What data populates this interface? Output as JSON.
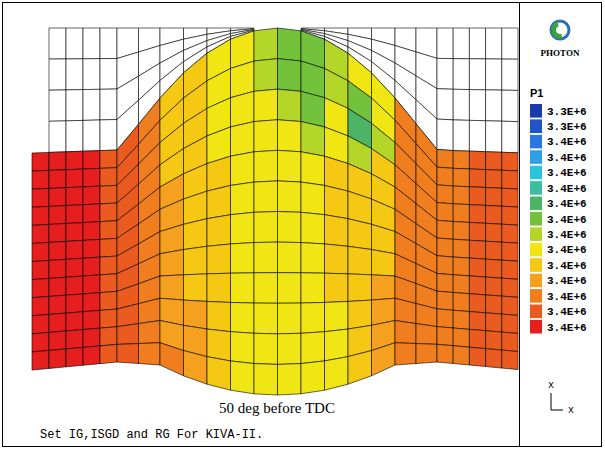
{
  "chart_data": {
    "type": "contour",
    "title": "50 deg before TDC",
    "subtitle": "Set IG,ISGD and RG For KIVA-II.",
    "logo": "PHOTON",
    "axis_labels": [
      "x",
      "x"
    ],
    "colorbar": {
      "title": "P1",
      "ticks": [
        {
          "value": 3337500,
          "label": "3.3E+6"
        },
        {
          "value": 3345000,
          "label": "3.3E+6"
        },
        {
          "value": 3352500,
          "label": "3.4E+6"
        },
        {
          "value": 3360000,
          "label": "3.4E+6"
        },
        {
          "value": 3367500,
          "label": "3.4E+6"
        },
        {
          "value": 3375000,
          "label": "3.4E+6"
        },
        {
          "value": 3382500,
          "label": "3.4E+6"
        },
        {
          "value": 3390000,
          "label": "3.4E+6"
        },
        {
          "value": 3397500,
          "label": "3.4E+6"
        },
        {
          "value": 3405000,
          "label": "3.4E+6"
        },
        {
          "value": 3412500,
          "label": "3.4E+6"
        },
        {
          "value": 3420000,
          "label": "3.4E+6"
        },
        {
          "value": 3427500,
          "label": "3.4E+6"
        },
        {
          "value": 3435000,
          "label": "3.4E+6"
        },
        {
          "value": 3442500,
          "label": "3.4E+6"
        }
      ],
      "colors": [
        "#1a3caa",
        "#1f55c8",
        "#2a78dc",
        "#2f9fe6",
        "#2cc3dc",
        "#3cbfa0",
        "#4cb464",
        "#72c23c",
        "#b4d628",
        "#f0e614",
        "#f5c814",
        "#f5a01e",
        "#f07d1e",
        "#eb5a1e",
        "#e61e1e"
      ]
    },
    "cells": [
      [
        3442500,
        3442500,
        3442500,
        3442500,
        3435000,
        3435000,
        3427500,
        3412500,
        3412500,
        3405000,
        3405000,
        3397500,
        3390000,
        3390000,
        3397500,
        3405000,
        3405000,
        3427500,
        3427500,
        3427500,
        3427500,
        3435000,
        3435000,
        3435000
      ],
      [
        3442500,
        3442500,
        3442500,
        3442500,
        3435000,
        3435000,
        3427500,
        3412500,
        3412500,
        3405000,
        3405000,
        3397500,
        3390000,
        3390000,
        3397500,
        3390000,
        3405000,
        3427500,
        3427500,
        3427500,
        3427500,
        3435000,
        3435000,
        3435000
      ],
      [
        3442500,
        3442500,
        3442500,
        3442500,
        3435000,
        3435000,
        3427500,
        3412500,
        3412500,
        3405000,
        3405000,
        3405000,
        3397500,
        3390000,
        3405000,
        3382500,
        3397500,
        3427500,
        3427500,
        3427500,
        3427500,
        3435000,
        3435000,
        3435000
      ],
      [
        3442500,
        3442500,
        3442500,
        3442500,
        3435000,
        3435000,
        3427500,
        3412500,
        3412500,
        3405000,
        3405000,
        3405000,
        3405000,
        3397500,
        3405000,
        3397500,
        3412500,
        3427500,
        3427500,
        3427500,
        3427500,
        3435000,
        3435000,
        3435000
      ],
      [
        3442500,
        3442500,
        3442500,
        3442500,
        3435000,
        3435000,
        3427500,
        3420000,
        3412500,
        3412500,
        3405000,
        3405000,
        3405000,
        3405000,
        3412500,
        3412500,
        3412500,
        3427500,
        3427500,
        3427500,
        3427500,
        3435000,
        3435000,
        3435000
      ],
      [
        3442500,
        3442500,
        3442500,
        3442500,
        3435000,
        3435000,
        3427500,
        3420000,
        3412500,
        3412500,
        3405000,
        3405000,
        3405000,
        3405000,
        3412500,
        3412500,
        3412500,
        3427500,
        3427500,
        3427500,
        3427500,
        3435000,
        3435000,
        3435000
      ],
      [
        3442500,
        3442500,
        3442500,
        3442500,
        3435000,
        3435000,
        3427500,
        3420000,
        3412500,
        3412500,
        3405000,
        3405000,
        3405000,
        3405000,
        3412500,
        3412500,
        3412500,
        3427500,
        3427500,
        3427500,
        3427500,
        3435000,
        3435000,
        3435000
      ],
      [
        3442500,
        3442500,
        3442500,
        3442500,
        3435000,
        3435000,
        3427500,
        3420000,
        3412500,
        3412500,
        3405000,
        3405000,
        3405000,
        3405000,
        3412500,
        3412500,
        3412500,
        3427500,
        3427500,
        3427500,
        3427500,
        3435000,
        3435000,
        3435000
      ],
      [
        3442500,
        3442500,
        3442500,
        3442500,
        3435000,
        3435000,
        3427500,
        3420000,
        3412500,
        3412500,
        3405000,
        3405000,
        3405000,
        3405000,
        3412500,
        3412500,
        3420000,
        3427500,
        3427500,
        3427500,
        3427500,
        3435000,
        3435000,
        3435000
      ],
      [
        3442500,
        3442500,
        3442500,
        3442500,
        3435000,
        3435000,
        3427500,
        3420000,
        3420000,
        3412500,
        3405000,
        3405000,
        3405000,
        3405000,
        3405000,
        3412500,
        3420000,
        3427500,
        3427500,
        3427500,
        3427500,
        3435000,
        3435000,
        3435000
      ],
      [
        3442500,
        3442500,
        3442500,
        3442500,
        3435000,
        3435000,
        3427500,
        3420000,
        3420000,
        3412500,
        3405000,
        3405000,
        3405000,
        3405000,
        3405000,
        3412500,
        3420000,
        3427500,
        3427500,
        3427500,
        3427500,
        3435000,
        3435000,
        3435000
      ],
      [
        3442500,
        3442500,
        3442500,
        3442500,
        3435000,
        3435000,
        3427500,
        3427500,
        3420000,
        3412500,
        3405000,
        3405000,
        3405000,
        3405000,
        3405000,
        3412500,
        3420000,
        3427500,
        3427500,
        3427500,
        3427500,
        3435000,
        3435000,
        3435000
      ]
    ]
  }
}
